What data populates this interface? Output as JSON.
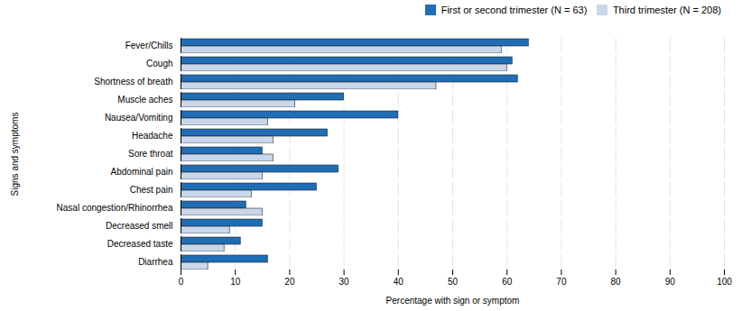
{
  "chart_data": {
    "type": "bar",
    "orientation": "horizontal",
    "categories": [
      "Fever/Chills",
      "Cough",
      "Shortness of breath",
      "Muscle aches",
      "Nausea/Vomiting",
      "Headache",
      "Sore throat",
      "Abdominal pain",
      "Chest pain",
      "Nasal congestion/Rhinorrhea",
      "Decreased smell",
      "Decreased taste",
      "Diarrhea"
    ],
    "series": [
      {
        "name": "First or second trimester (N = 63)",
        "color": "#1F6DB5",
        "values": [
          64,
          61,
          62,
          30,
          40,
          27,
          15,
          29,
          25,
          12,
          15,
          11,
          16
        ]
      },
      {
        "name": "Third trimester (N = 208)",
        "color": "#C8D8EA",
        "values": [
          59,
          60,
          47,
          21,
          16,
          17,
          17,
          15,
          13,
          15,
          9,
          8,
          5
        ]
      }
    ],
    "xlabel": "Percentage with sign or symptom",
    "ylabel": "Signs and symptoms",
    "xlim": [
      0,
      100
    ],
    "xticks": [
      0,
      10,
      20,
      30,
      40,
      50,
      60,
      70,
      80,
      90,
      100
    ],
    "grid": true,
    "legend": "upper right"
  }
}
